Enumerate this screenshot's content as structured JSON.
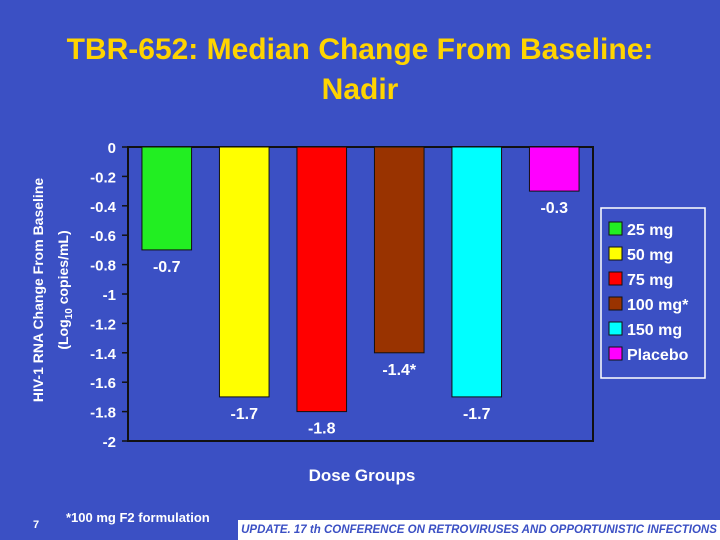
{
  "slide": {
    "title_line1": "TBR-652: Median Change From Baseline:",
    "title_line2": "Nadir",
    "footnote": "*100 mg F2 formulation",
    "slide_number": "7",
    "banner": "UPDATE. 17 th CONFERENCE ON RETROVIRUSES AND OPPORTUNISTIC INFECTIONS"
  },
  "chart_data": {
    "type": "bar",
    "categories": [
      "25 mg",
      "50 mg",
      "75 mg",
      "100 mg*",
      "150 mg",
      "Placebo"
    ],
    "values": [
      -0.7,
      -1.7,
      -1.8,
      -1.4,
      -1.7,
      -0.3
    ],
    "data_labels": [
      "-0.7",
      "-1.7",
      "-1.8",
      "-1.4*",
      "-1.7",
      "-0.3"
    ],
    "colors": [
      "#22ee22",
      "#ffff00",
      "#ff0000",
      "#993300",
      "#00ffff",
      "#ff00ff"
    ],
    "xlabel": "Dose Groups",
    "ylabel_line1": "HIV-1 RNA Change From Baseline",
    "ylabel_line2_prefix": "(Log",
    "ylabel_line2_sub": "10",
    "ylabel_line2_suffix": " copies/mL)",
    "ylim": [
      -2,
      0
    ],
    "yticks": [
      0,
      -0.2,
      -0.4,
      -0.6,
      -0.8,
      -1,
      -1.2,
      -1.4,
      -1.6,
      -1.8,
      -2
    ],
    "ytick_labels": [
      "0",
      "-0.2",
      "-0.4",
      "-0.6",
      "-0.8",
      "-1",
      "-1.2",
      "-1.4",
      "-1.6",
      "-1.8",
      "-2"
    ],
    "legend_position": "right",
    "legend_colors": {
      "background": "#3b50c4",
      "border": "#ffffff"
    }
  }
}
